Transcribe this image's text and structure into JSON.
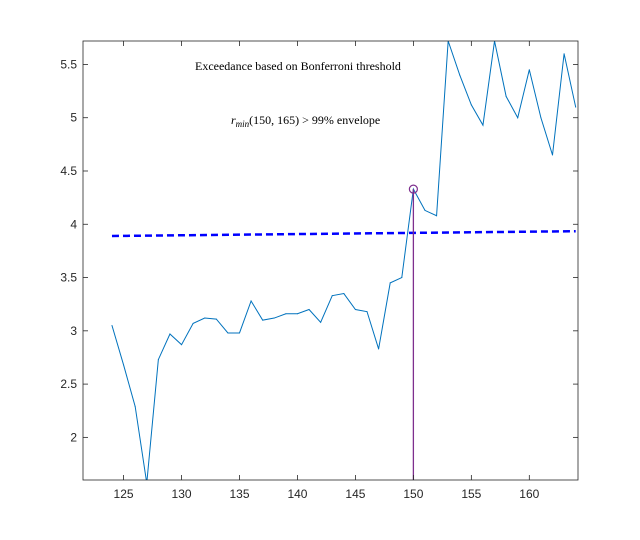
{
  "chart_data": {
    "type": "line",
    "title": "",
    "xlabel": "",
    "ylabel": "",
    "xlim": [
      121.5,
      164.2
    ],
    "ylim": [
      1.6,
      5.72
    ],
    "xticks": [
      125,
      130,
      135,
      140,
      145,
      150,
      155,
      160
    ],
    "yticks": [
      2,
      2.5,
      3,
      3.5,
      4,
      4.5,
      5,
      5.5
    ],
    "grid": false,
    "series": [
      {
        "x": [
          124,
          125,
          126,
          127,
          128,
          129,
          130,
          131,
          132,
          133,
          134,
          135,
          136,
          137,
          138,
          139,
          140,
          141,
          142,
          143,
          144,
          145,
          146,
          147,
          148,
          149,
          150,
          151,
          152,
          153,
          154,
          155,
          156,
          157,
          158,
          159,
          160,
          161,
          162,
          163,
          164
        ],
        "values": [
          3.05,
          2.68,
          2.29,
          1.57,
          2.73,
          2.97,
          2.87,
          3.07,
          3.12,
          3.11,
          2.98,
          2.98,
          3.28,
          3.1,
          3.12,
          3.16,
          3.16,
          3.2,
          3.08,
          3.33,
          3.35,
          3.2,
          3.18,
          2.83,
          3.45,
          3.5,
          4.33,
          4.13,
          4.08,
          5.72,
          5.4,
          5.12,
          4.93,
          5.72,
          5.2,
          5.0,
          5.45,
          5.0,
          4.65,
          5.6,
          5.1
        ],
        "color": "#0072BD"
      },
      {
        "x": [
          124,
          164
        ],
        "values": [
          3.89,
          3.935
        ],
        "color": "#0000FF",
        "style": "dashed"
      }
    ],
    "marker": {
      "x": 150,
      "y": 4.33,
      "color": "#7E2F8E"
    },
    "annotations": {
      "line1": "Exceedance based on Bonferroni threshold",
      "line2_sym": "r",
      "line2_sub": "min",
      "line2_text": "(150, 165) > 99% envelope"
    }
  }
}
